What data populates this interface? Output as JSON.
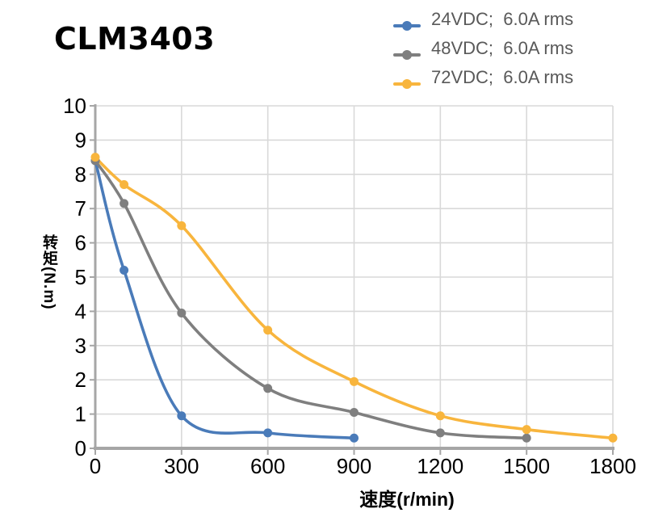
{
  "header": {
    "title": "CLM3403"
  },
  "chart_data": {
    "type": "line",
    "title": "CLM3403",
    "xlabel": "速度(r/min)",
    "ylabel": "转矩(N.m)",
    "xlim": [
      0,
      1800
    ],
    "ylim": [
      0,
      10
    ],
    "xticks": [
      0,
      300,
      600,
      900,
      1200,
      1500,
      1800
    ],
    "yticks": [
      0,
      1,
      2,
      3,
      4,
      5,
      6,
      7,
      8,
      9,
      10
    ],
    "grid": true,
    "smooth": true,
    "marker": "circle",
    "legend_position": "top-right",
    "series": [
      {
        "name": "24VDC;  6.0A rms",
        "color": "#4A7BB9",
        "points": [
          [
            0,
            8.4
          ],
          [
            100,
            5.2
          ],
          [
            300,
            0.95
          ],
          [
            600,
            0.45
          ],
          [
            900,
            0.3
          ]
        ]
      },
      {
        "name": "48VDC;  6.0A rms",
        "color": "#7F7F7F",
        "points": [
          [
            0,
            8.4
          ],
          [
            100,
            7.15
          ],
          [
            300,
            3.95
          ],
          [
            600,
            1.75
          ],
          [
            900,
            1.05
          ],
          [
            1200,
            0.45
          ],
          [
            1500,
            0.3
          ]
        ]
      },
      {
        "name": "72VDC;  6.0A rms",
        "color": "#F8B53D",
        "points": [
          [
            0,
            8.5
          ],
          [
            100,
            7.7
          ],
          [
            300,
            6.5
          ],
          [
            600,
            3.45
          ],
          [
            900,
            1.95
          ],
          [
            1200,
            0.95
          ],
          [
            1500,
            0.55
          ],
          [
            1800,
            0.3
          ]
        ]
      }
    ],
    "colors": {
      "gridline": "#D9D9D9",
      "axis": "#A6A6A6",
      "tick_text": "#000000",
      "legend_text": "#595959",
      "title_text": "#000000"
    }
  }
}
